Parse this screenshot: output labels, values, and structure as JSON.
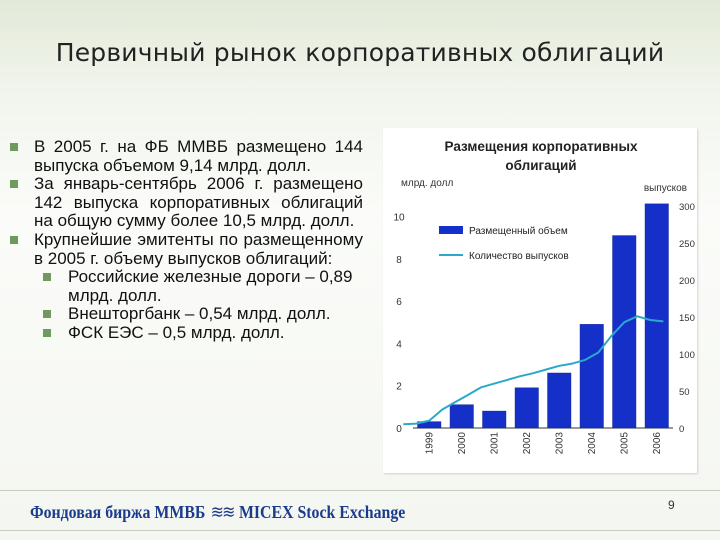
{
  "slide": {
    "title": "Первичный рынок корпоративных облигаций",
    "page_number": "9",
    "footer_logo_ru": "Фондовая биржа ММВБ",
    "footer_logo_en": "MICEX Stock Exchange"
  },
  "bullets": [
    {
      "text": "В 2005 г. на ФБ ММВБ размещено 144 выпуска объемом 9,14 млрд. долл.",
      "sub": []
    },
    {
      "text": "За январь-сентябрь 2006 г. размещено 142 выпуска корпоративных облигаций на общую сумму более 10,5 млрд. долл.",
      "sub": []
    },
    {
      "text": "Крупнейшие эмитенты по размещенному в 2005 г. объему выпусков облигаций:",
      "sub": [
        "Российские железные дороги – 0,89 млрд. долл.",
        "Внешторгбанк – 0,54 млрд. долл.",
        "ФСК ЕЭС – 0,5 млрд. долл."
      ]
    }
  ],
  "colors": {
    "bar": "#1530c8",
    "line": "#2aa9c9",
    "bullet": "#6e9a5e"
  },
  "chart_data": {
    "type": "bar",
    "title": "Размещения корпоративных облигаций",
    "ylabel_left": "млрд. долл",
    "ylabel_right": "выпусков",
    "categories": [
      "1999",
      "2000",
      "2001",
      "2002",
      "2003",
      "2004",
      "2005",
      "2006"
    ],
    "left_ticks": [
      "0",
      "2",
      "4",
      "6",
      "8",
      "10"
    ],
    "right_ticks": [
      "0",
      "50",
      "100",
      "150",
      "200",
      "250",
      "300"
    ],
    "ylim_left": [
      0,
      10.5
    ],
    "ylim_right": [
      0,
      300
    ],
    "legend_position": "top-left",
    "grid": false,
    "series": [
      {
        "name": "Размещенный объем",
        "kind": "bar",
        "axis": "left",
        "values": [
          0.3,
          1.1,
          0.8,
          1.9,
          2.6,
          4.9,
          9.1,
          10.6
        ]
      },
      {
        "name": "Количество выпусков",
        "kind": "line",
        "axis": "right",
        "x": [
          1998.2,
          1998.6,
          1999.0,
          1999.4,
          1999.8,
          2000.2,
          2000.6,
          2001.0,
          2001.4,
          2001.8,
          2002.2,
          2002.6,
          2003.0,
          2003.4,
          2003.8,
          2004.2,
          2004.6,
          2005.0,
          2005.4,
          2005.8,
          2006.2
        ],
        "values": [
          5,
          6,
          10,
          25,
          35,
          45,
          55,
          60,
          65,
          70,
          74,
          79,
          84,
          87,
          92,
          102,
          124,
          143,
          151,
          146,
          144
        ]
      }
    ]
  }
}
